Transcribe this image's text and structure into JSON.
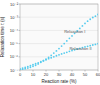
{
  "chart_data": {
    "type": "scatter",
    "xlabel": "Reaction rate (%)",
    "ylabel": "Relaxation time τ (s)",
    "x": [
      0,
      2,
      4,
      6,
      8,
      10,
      12,
      14,
      16,
      18,
      20,
      22,
      24,
      26,
      28,
      30,
      32,
      34,
      36,
      38,
      40,
      42,
      44,
      46,
      48,
      50,
      52,
      54,
      56,
      58,
      60
    ],
    "series": [
      {
        "color": "#55ccee",
        "marker": "dot",
        "values": [
          1.1e-07,
          1.15e-07,
          1.25e-07,
          1.4e-07,
          1.6e-07,
          1.9e-07,
          2.3e-07,
          2.9e-07,
          3.8e-07,
          5e-07,
          6.5e-07,
          9e-07,
          1.3e-06,
          1.9e-06,
          2.8e-06,
          4.2e-06,
          6.5e-06,
          1e-05,
          1.6e-05,
          2.5e-05,
          3.8e-05,
          6e-05,
          9e-05,
          0.00014,
          0.00022,
          0.00034,
          0.0005,
          0.0007,
          0.00095,
          0.0012,
          0.0016
        ]
      },
      {
        "color": "#55ccee",
        "marker": "dot",
        "values": [
          1.2e-07,
          1.4e-07,
          1.6e-07,
          1.8e-07,
          2.1e-07,
          2.5e-07,
          3e-07,
          3.5e-07,
          4.2e-07,
          5e-07,
          6e-07,
          7.2e-07,
          8.5e-07,
          1e-06,
          1.2e-06,
          1.4e-06,
          1.65e-06,
          1.9e-06,
          2.2e-06,
          2.6e-06,
          3e-06,
          3.4e-06,
          3.9e-06,
          4.4e-06,
          5e-06,
          5.6e-06,
          6.2e-06,
          7e-06,
          7.8e-06,
          8.7e-06,
          9.8e-06
        ]
      }
    ],
    "xlim": [
      0,
      60
    ],
    "ylim": [
      1e-07,
      0.01
    ],
    "xticks": [
      0,
      10,
      20,
      30,
      40,
      50,
      60
    ],
    "yticks": [
      {
        "value": 1e-07,
        "label": "10⁻⁷"
      },
      {
        "value": 1e-06,
        "label": "10⁻⁶"
      },
      {
        "value": 1e-05,
        "label": "10⁻⁵"
      },
      {
        "value": 0.0001,
        "label": "10⁻⁴"
      },
      {
        "value": 0.001,
        "label": "10⁻³"
      },
      {
        "value": 0.01,
        "label": "10⁻²"
      }
    ],
    "log": "y",
    "grid": "y",
    "annotations": [
      {
        "text": "Relaxation I",
        "x": 34,
        "y": 6e-05
      },
      {
        "text": "Relaxation II",
        "x": 38,
        "y": 3.5e-06
      }
    ]
  }
}
